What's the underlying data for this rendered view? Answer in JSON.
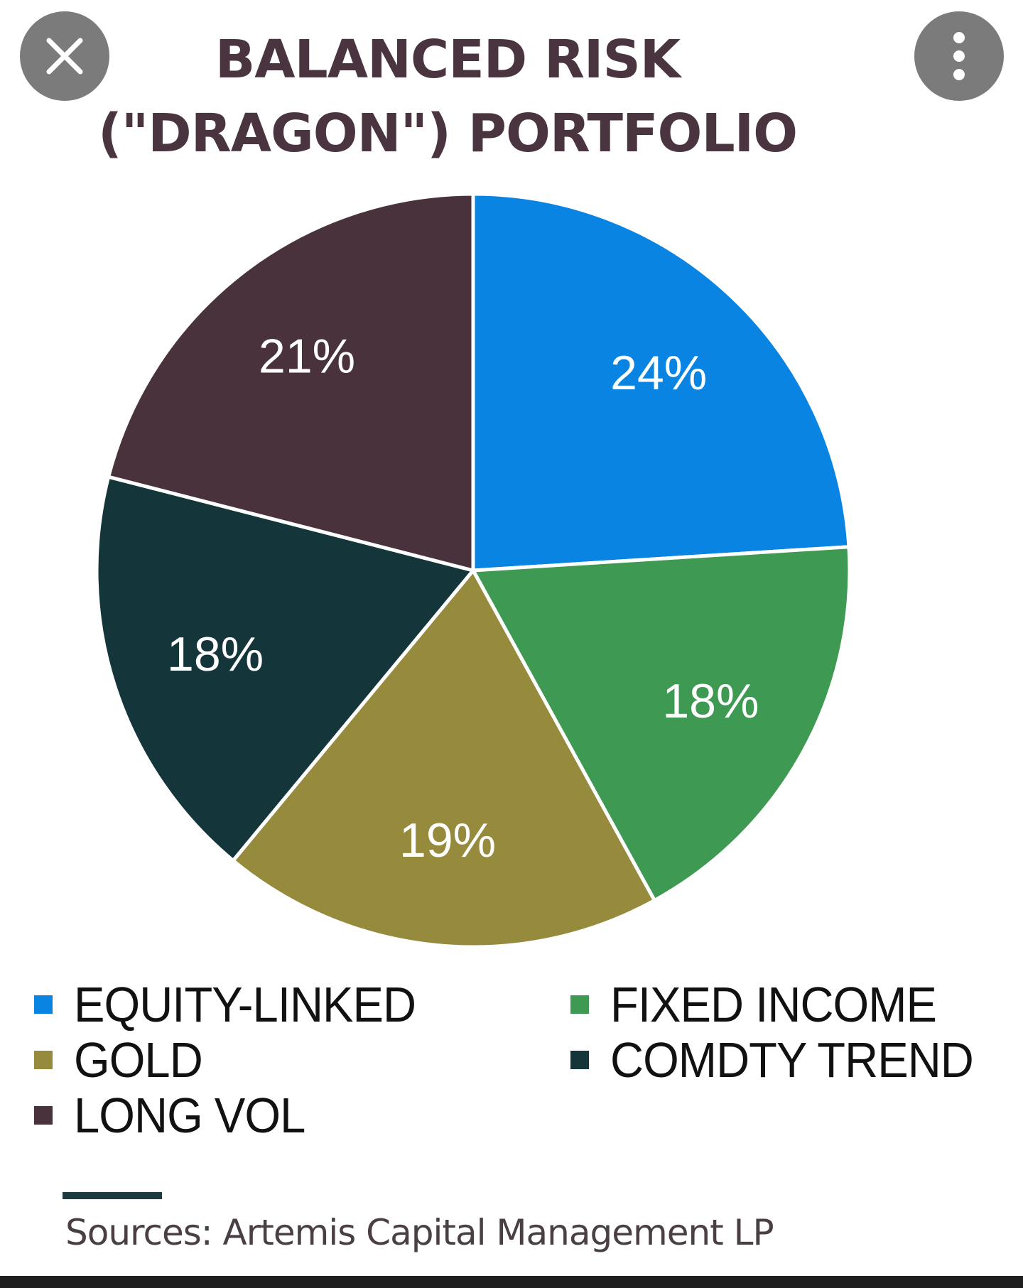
{
  "toolbar": {
    "close_icon": "close-icon",
    "menu_icon": "more-vertical-icon"
  },
  "chart_data": {
    "type": "pie",
    "title": "BALANCED RISK (\"DRAGON\") PORTFOLIO",
    "slices": [
      {
        "name": "EQUITY-LINKED",
        "value": 24,
        "label": "24%",
        "color": "#0984e3"
      },
      {
        "name": "FIXED INCOME",
        "value": 18,
        "label": "18%",
        "color": "#3e9a52"
      },
      {
        "name": "GOLD",
        "value": 19,
        "label": "19%",
        "color": "#968a3d"
      },
      {
        "name": "COMDTY TREND",
        "value": 18,
        "label": "18%",
        "color": "#14363b"
      },
      {
        "name": "LONG VOL",
        "value": 21,
        "label": "21%",
        "color": "#49323c"
      }
    ],
    "legend_position": "bottom",
    "source": "Sources: Artemis Capital Management LP"
  }
}
